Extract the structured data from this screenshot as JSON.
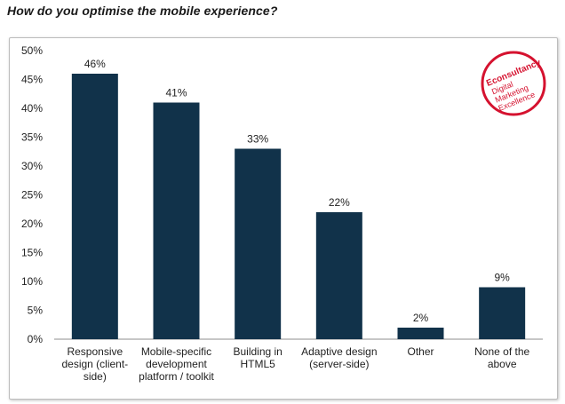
{
  "question": "How do you optimise the mobile experience?",
  "logo": {
    "brand": "Econsultancy",
    "line1": "Digital",
    "line2": "Marketing",
    "line3": "Excellence"
  },
  "colors": {
    "bar": "#11324a",
    "logo": "#d5122f"
  },
  "chart_data": {
    "type": "bar",
    "title": "How do you optimise the mobile experience?",
    "categories": [
      [
        "Responsive",
        "design (client-",
        "side)"
      ],
      [
        "Mobile-specific",
        "development",
        "platform / toolkit"
      ],
      [
        "Building in",
        "HTML5"
      ],
      [
        "Adaptive design",
        "(server-side)"
      ],
      [
        "Other"
      ],
      [
        "None of the",
        "above"
      ]
    ],
    "values": [
      46,
      41,
      33,
      22,
      2,
      9
    ],
    "data_labels": [
      "46%",
      "41%",
      "33%",
      "22%",
      "2%",
      "9%"
    ],
    "ylim": [
      0,
      50
    ],
    "yticks": [
      "0%",
      "5%",
      "10%",
      "15%",
      "20%",
      "25%",
      "30%",
      "35%",
      "40%",
      "45%",
      "50%"
    ],
    "xlabel": "",
    "ylabel": "",
    "grid": false,
    "legend": "none"
  }
}
